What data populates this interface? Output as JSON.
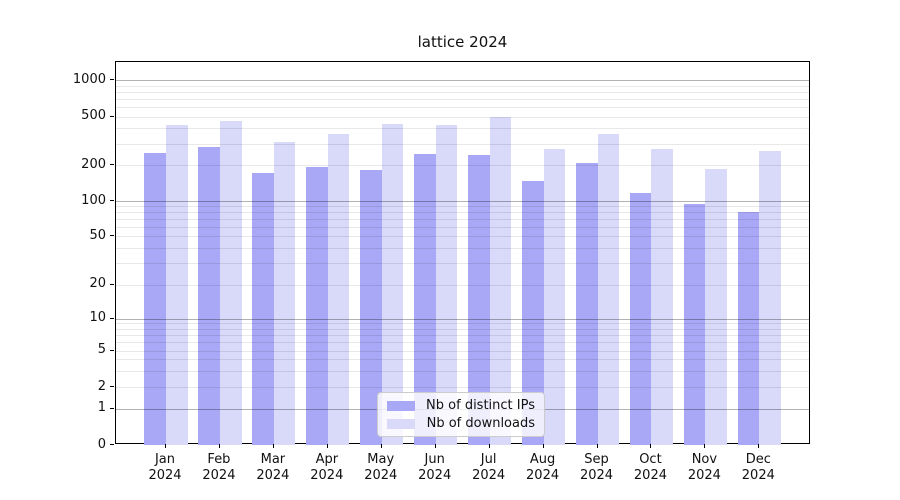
{
  "title": "lattice 2024",
  "legend": {
    "items": [
      {
        "label": "Nb of distinct IPs",
        "color": "#a8a8f6"
      },
      {
        "label": "Nb of downloads",
        "color": "#d9d9f9"
      }
    ]
  },
  "chart_data": {
    "type": "bar",
    "title": "lattice 2024",
    "categories": [
      "Jan 2024",
      "Feb 2024",
      "Mar 2024",
      "Apr 2024",
      "May 2024",
      "Jun 2024",
      "Jul 2024",
      "Aug 2024",
      "Sep 2024",
      "Oct 2024",
      "Nov 2024",
      "Dec 2024"
    ],
    "months": [
      "Jan",
      "Feb",
      "Mar",
      "Apr",
      "May",
      "Jun",
      "Jul",
      "Aug",
      "Sep",
      "Oct",
      "Nov",
      "Dec"
    ],
    "year": "2024",
    "series": [
      {
        "name": "Nb of distinct IPs",
        "key": "distinct-ips",
        "color": "#a8a8f6",
        "values": [
          252,
          280,
          171,
          191,
          183,
          246,
          243,
          146,
          207,
          116,
          94,
          81
        ]
      },
      {
        "name": "Nb of downloads",
        "key": "downloads",
        "color": "#d9d9f9",
        "values": [
          422,
          455,
          309,
          360,
          435,
          427,
          495,
          273,
          360,
          269,
          184,
          262
        ]
      }
    ],
    "y_axis": {
      "scale": "symlog",
      "ylim": [
        0,
        1500
      ],
      "tick_labels": [
        "0",
        "1",
        "2",
        "5",
        "10",
        "20",
        "50",
        "100",
        "200",
        "500",
        "1000"
      ],
      "tick_values": [
        0,
        1,
        2,
        5,
        10,
        20,
        50,
        100,
        200,
        500,
        1000
      ],
      "major_gridlines": [
        1,
        10,
        100,
        1000
      ],
      "light_gridlines": [
        2,
        3,
        4,
        5,
        6,
        7,
        8,
        9,
        20,
        30,
        40,
        50,
        60,
        70,
        80,
        90,
        200,
        300,
        400,
        500,
        600,
        700,
        800,
        900
      ]
    },
    "grid": true,
    "legend_position": "lower center"
  }
}
